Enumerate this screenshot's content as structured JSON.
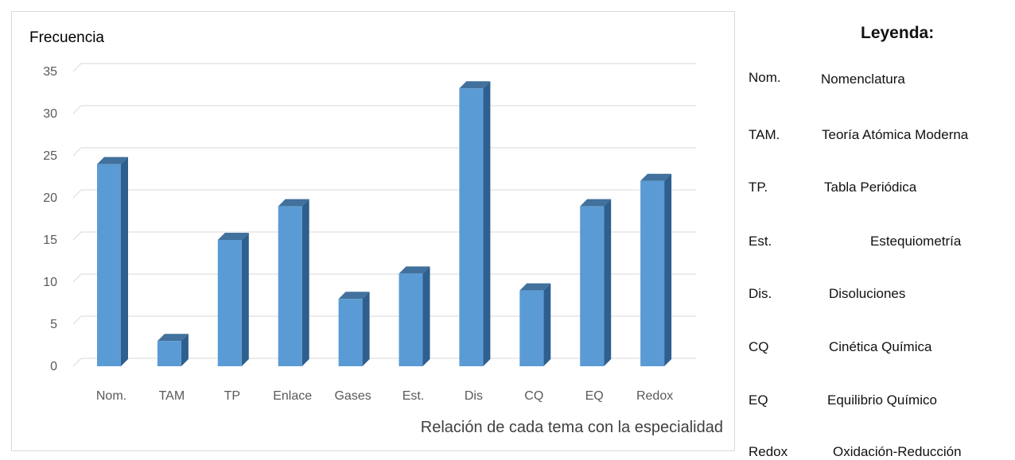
{
  "chart_data": {
    "type": "bar",
    "ylabel": "Frecuencia",
    "xlabel": "Relación de cada tema con la especialidad",
    "categories": [
      "Nom.",
      "TAM",
      "TP",
      "Enlace",
      "Gases",
      "Est.",
      "Dis",
      "CQ",
      "EQ",
      "Redox"
    ],
    "values": [
      24,
      3,
      15,
      19,
      8,
      11,
      33,
      9,
      19,
      22
    ],
    "ylim": [
      0,
      35
    ],
    "yticks": [
      0,
      5,
      10,
      15,
      20,
      25,
      30,
      35
    ],
    "grid": true,
    "bar_color": "#5b9bd5",
    "bar_side_color": "#2e5f8e",
    "bar_top_color": "#41719c"
  },
  "legend": {
    "title": "Leyenda:",
    "items": [
      {
        "abbr": "Nom.",
        "desc": "Nomenclatura"
      },
      {
        "abbr": "TAM.",
        "desc": "Teoría Atómica Moderna"
      },
      {
        "abbr": "TP.",
        "desc": "Tabla Periódica"
      },
      {
        "abbr": "Est.",
        "desc": "Estequiometría"
      },
      {
        "abbr": "Dis.",
        "desc": "Disoluciones"
      },
      {
        "abbr": "CQ",
        "desc": "Cinética Química"
      },
      {
        "abbr": "EQ",
        "desc": "Equilibrio Químico"
      },
      {
        "abbr": "Redox",
        "desc": "Oxidación-Reducción"
      }
    ]
  }
}
